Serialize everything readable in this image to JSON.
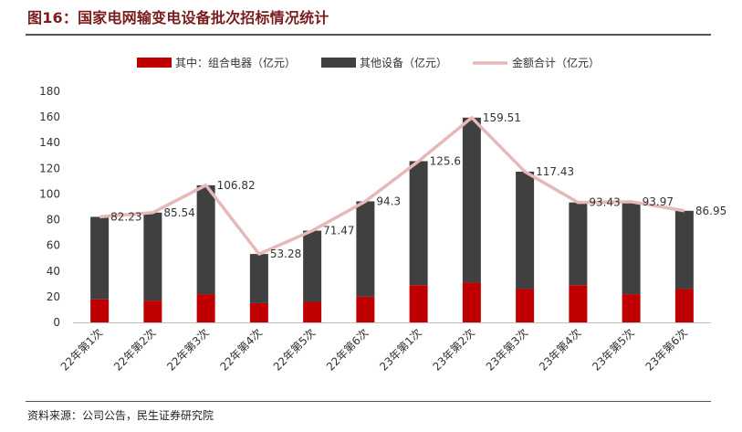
{
  "title": "图16：国家电网输变电设备批次招标情况统计",
  "source": "资料来源：公司公告，民生证券研究院",
  "colors": {
    "series1": "#c00000",
    "series2": "#404040",
    "line": "#e6b9b8",
    "axis": "#bfbfbf",
    "title": "#7a1c1c"
  },
  "chart_data": {
    "type": "bar",
    "stacked": true,
    "title": "国家电网输变电设备批次招标情况统计",
    "categories": [
      "22年第1次",
      "22年第2次",
      "22年第3次",
      "22年第4次",
      "22年第5次",
      "22年第6次",
      "23年第1次",
      "23年第2次",
      "23年第3次",
      "23年第4次",
      "23年第5次",
      "23年第6次"
    ],
    "series": [
      {
        "name": "其中：组合电器（亿元）",
        "type": "bar",
        "values": [
          18,
          17,
          22,
          15,
          16,
          20,
          29,
          31,
          26,
          29,
          22,
          26
        ]
      },
      {
        "name": "其他设备（亿元）",
        "type": "bar",
        "values": [
          64.23,
          68.54,
          84.82,
          38.28,
          55.47,
          74.3,
          96.6,
          128.51,
          91.43,
          64.43,
          71.97,
          60.95
        ]
      },
      {
        "name": "金额合计（亿元）",
        "type": "line",
        "values": [
          82.23,
          85.54,
          106.82,
          53.28,
          71.47,
          94.3,
          125.6,
          159.51,
          117.43,
          93.43,
          93.97,
          86.95
        ]
      }
    ],
    "total_labels": [
      "82.23",
      "85.54",
      "106.82",
      "53.28",
      "71.47",
      "94.3",
      "125.6",
      "159.51",
      "117.43",
      "93.43",
      "93.97",
      "86.95"
    ],
    "y_ticks": [
      0,
      20,
      40,
      60,
      80,
      100,
      120,
      140,
      160,
      180
    ],
    "ylim": [
      0,
      180
    ],
    "xlabel": "",
    "ylabel": "",
    "legend_position": "top",
    "grid": false
  }
}
